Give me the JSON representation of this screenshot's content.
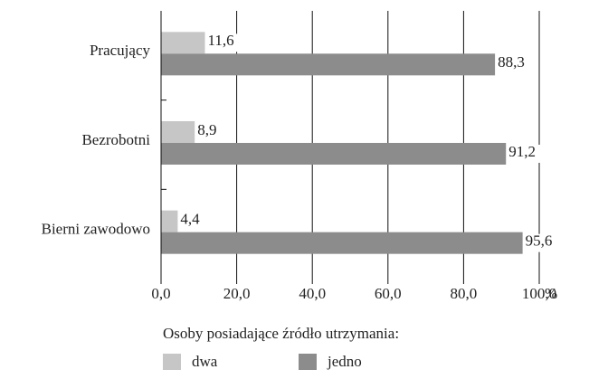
{
  "chart_data": {
    "type": "bar",
    "orientation": "horizontal",
    "categories": [
      "Pracujący",
      "Bezrobotni",
      "Bierni zawodowo"
    ],
    "series": [
      {
        "name": "dwa",
        "color": "#c6c6c6",
        "values": [
          11.6,
          8.9,
          4.4
        ],
        "value_labels": [
          "11,6",
          "8,9",
          "4,4"
        ]
      },
      {
        "name": "jedno",
        "color": "#8c8c8c",
        "values": [
          88.3,
          91.2,
          95.6
        ],
        "value_labels": [
          "88,3",
          "91,2",
          "95,6"
        ]
      }
    ],
    "xlim": [
      0,
      100
    ],
    "xticks": [
      {
        "value": 0,
        "label": "0,0"
      },
      {
        "value": 20,
        "label": "20,0"
      },
      {
        "value": 40,
        "label": "40,0"
      },
      {
        "value": 60,
        "label": "60,0"
      },
      {
        "value": 80,
        "label": "80,0"
      },
      {
        "value": 100,
        "label": "100,0"
      }
    ],
    "xlabel": "%",
    "grid": true,
    "legend_title": "Osoby posiadające źródło utrzymania:"
  }
}
